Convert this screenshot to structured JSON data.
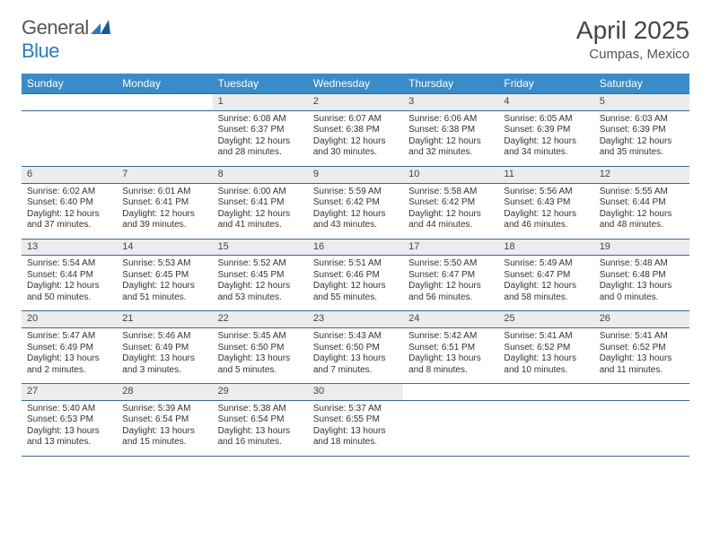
{
  "logo": {
    "word1": "General",
    "word2": "Blue"
  },
  "title": "April 2025",
  "location": "Cumpas, Mexico",
  "colors": {
    "header_bg": "#3a8bc9",
    "header_text": "#ffffff",
    "daynum_bg": "#ececec",
    "border": "#3a6a8f",
    "logo_accent": "#2a7bbf",
    "text": "#333333",
    "title_text": "#444444"
  },
  "weekdays": [
    "Sunday",
    "Monday",
    "Tuesday",
    "Wednesday",
    "Thursday",
    "Friday",
    "Saturday"
  ],
  "weeks": [
    {
      "days": [
        {
          "n": "",
          "lines": []
        },
        {
          "n": "",
          "lines": []
        },
        {
          "n": "1",
          "lines": [
            "Sunrise: 6:08 AM",
            "Sunset: 6:37 PM",
            "Daylight: 12 hours",
            "and 28 minutes."
          ]
        },
        {
          "n": "2",
          "lines": [
            "Sunrise: 6:07 AM",
            "Sunset: 6:38 PM",
            "Daylight: 12 hours",
            "and 30 minutes."
          ]
        },
        {
          "n": "3",
          "lines": [
            "Sunrise: 6:06 AM",
            "Sunset: 6:38 PM",
            "Daylight: 12 hours",
            "and 32 minutes."
          ]
        },
        {
          "n": "4",
          "lines": [
            "Sunrise: 6:05 AM",
            "Sunset: 6:39 PM",
            "Daylight: 12 hours",
            "and 34 minutes."
          ]
        },
        {
          "n": "5",
          "lines": [
            "Sunrise: 6:03 AM",
            "Sunset: 6:39 PM",
            "Daylight: 12 hours",
            "and 35 minutes."
          ]
        }
      ]
    },
    {
      "days": [
        {
          "n": "6",
          "lines": [
            "Sunrise: 6:02 AM",
            "Sunset: 6:40 PM",
            "Daylight: 12 hours",
            "and 37 minutes."
          ]
        },
        {
          "n": "7",
          "lines": [
            "Sunrise: 6:01 AM",
            "Sunset: 6:41 PM",
            "Daylight: 12 hours",
            "and 39 minutes."
          ]
        },
        {
          "n": "8",
          "lines": [
            "Sunrise: 6:00 AM",
            "Sunset: 6:41 PM",
            "Daylight: 12 hours",
            "and 41 minutes."
          ]
        },
        {
          "n": "9",
          "lines": [
            "Sunrise: 5:59 AM",
            "Sunset: 6:42 PM",
            "Daylight: 12 hours",
            "and 43 minutes."
          ]
        },
        {
          "n": "10",
          "lines": [
            "Sunrise: 5:58 AM",
            "Sunset: 6:42 PM",
            "Daylight: 12 hours",
            "and 44 minutes."
          ]
        },
        {
          "n": "11",
          "lines": [
            "Sunrise: 5:56 AM",
            "Sunset: 6:43 PM",
            "Daylight: 12 hours",
            "and 46 minutes."
          ]
        },
        {
          "n": "12",
          "lines": [
            "Sunrise: 5:55 AM",
            "Sunset: 6:44 PM",
            "Daylight: 12 hours",
            "and 48 minutes."
          ]
        }
      ]
    },
    {
      "days": [
        {
          "n": "13",
          "lines": [
            "Sunrise: 5:54 AM",
            "Sunset: 6:44 PM",
            "Daylight: 12 hours",
            "and 50 minutes."
          ]
        },
        {
          "n": "14",
          "lines": [
            "Sunrise: 5:53 AM",
            "Sunset: 6:45 PM",
            "Daylight: 12 hours",
            "and 51 minutes."
          ]
        },
        {
          "n": "15",
          "lines": [
            "Sunrise: 5:52 AM",
            "Sunset: 6:45 PM",
            "Daylight: 12 hours",
            "and 53 minutes."
          ]
        },
        {
          "n": "16",
          "lines": [
            "Sunrise: 5:51 AM",
            "Sunset: 6:46 PM",
            "Daylight: 12 hours",
            "and 55 minutes."
          ]
        },
        {
          "n": "17",
          "lines": [
            "Sunrise: 5:50 AM",
            "Sunset: 6:47 PM",
            "Daylight: 12 hours",
            "and 56 minutes."
          ]
        },
        {
          "n": "18",
          "lines": [
            "Sunrise: 5:49 AM",
            "Sunset: 6:47 PM",
            "Daylight: 12 hours",
            "and 58 minutes."
          ]
        },
        {
          "n": "19",
          "lines": [
            "Sunrise: 5:48 AM",
            "Sunset: 6:48 PM",
            "Daylight: 13 hours",
            "and 0 minutes."
          ]
        }
      ]
    },
    {
      "days": [
        {
          "n": "20",
          "lines": [
            "Sunrise: 5:47 AM",
            "Sunset: 6:49 PM",
            "Daylight: 13 hours",
            "and 2 minutes."
          ]
        },
        {
          "n": "21",
          "lines": [
            "Sunrise: 5:46 AM",
            "Sunset: 6:49 PM",
            "Daylight: 13 hours",
            "and 3 minutes."
          ]
        },
        {
          "n": "22",
          "lines": [
            "Sunrise: 5:45 AM",
            "Sunset: 6:50 PM",
            "Daylight: 13 hours",
            "and 5 minutes."
          ]
        },
        {
          "n": "23",
          "lines": [
            "Sunrise: 5:43 AM",
            "Sunset: 6:50 PM",
            "Daylight: 13 hours",
            "and 7 minutes."
          ]
        },
        {
          "n": "24",
          "lines": [
            "Sunrise: 5:42 AM",
            "Sunset: 6:51 PM",
            "Daylight: 13 hours",
            "and 8 minutes."
          ]
        },
        {
          "n": "25",
          "lines": [
            "Sunrise: 5:41 AM",
            "Sunset: 6:52 PM",
            "Daylight: 13 hours",
            "and 10 minutes."
          ]
        },
        {
          "n": "26",
          "lines": [
            "Sunrise: 5:41 AM",
            "Sunset: 6:52 PM",
            "Daylight: 13 hours",
            "and 11 minutes."
          ]
        }
      ]
    },
    {
      "days": [
        {
          "n": "27",
          "lines": [
            "Sunrise: 5:40 AM",
            "Sunset: 6:53 PM",
            "Daylight: 13 hours",
            "and 13 minutes."
          ]
        },
        {
          "n": "28",
          "lines": [
            "Sunrise: 5:39 AM",
            "Sunset: 6:54 PM",
            "Daylight: 13 hours",
            "and 15 minutes."
          ]
        },
        {
          "n": "29",
          "lines": [
            "Sunrise: 5:38 AM",
            "Sunset: 6:54 PM",
            "Daylight: 13 hours",
            "and 16 minutes."
          ]
        },
        {
          "n": "30",
          "lines": [
            "Sunrise: 5:37 AM",
            "Sunset: 6:55 PM",
            "Daylight: 13 hours",
            "and 18 minutes."
          ]
        },
        {
          "n": "",
          "lines": []
        },
        {
          "n": "",
          "lines": []
        },
        {
          "n": "",
          "lines": []
        }
      ]
    }
  ]
}
